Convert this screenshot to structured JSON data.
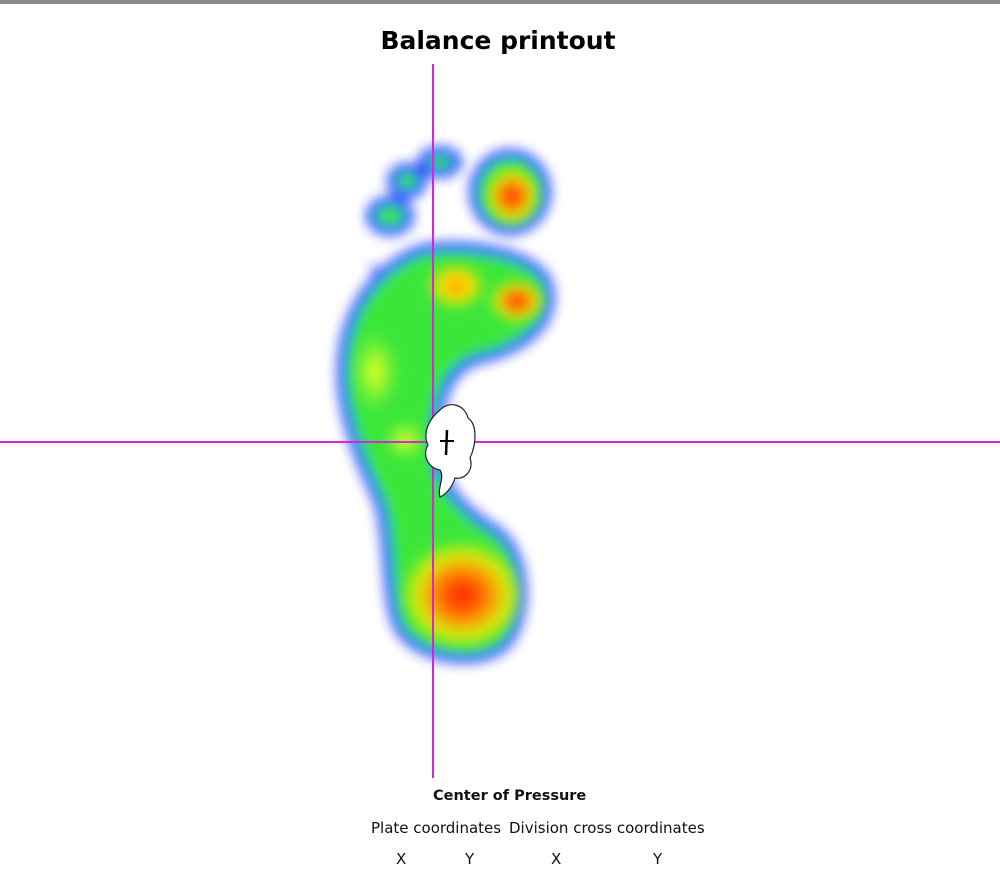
{
  "header": {
    "title": "Balance printout"
  },
  "center_of_pressure": {
    "title": "Center of Pressure",
    "groups": [
      "Plate coordinates",
      "Division cross coordinates"
    ],
    "columns": [
      "X",
      "Y",
      "X",
      "Y"
    ]
  }
}
